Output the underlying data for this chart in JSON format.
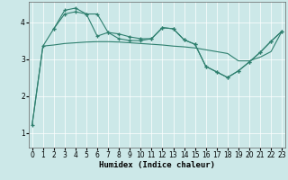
{
  "xlabel": "Humidex (Indice chaleur)",
  "bg_color": "#cce8e8",
  "line_color": "#2e7f6e",
  "grid_color": "#ffffff",
  "x_ticks": [
    0,
    1,
    2,
    3,
    4,
    5,
    6,
    7,
    8,
    9,
    10,
    11,
    12,
    13,
    14,
    15,
    16,
    17,
    18,
    19,
    20,
    21,
    22,
    23
  ],
  "y_ticks": [
    1,
    2,
    3,
    4
  ],
  "ylim": [
    0.6,
    4.55
  ],
  "xlim": [
    -0.3,
    23.3
  ],
  "line1_x": [
    0,
    1,
    2,
    3,
    4,
    5,
    6,
    7,
    8,
    9,
    10,
    11,
    12,
    13,
    14,
    15,
    16,
    17,
    18,
    19,
    20,
    21,
    22,
    23
  ],
  "line1_y": [
    1.2,
    3.35,
    3.38,
    3.42,
    3.44,
    3.46,
    3.47,
    3.47,
    3.46,
    3.44,
    3.42,
    3.4,
    3.38,
    3.35,
    3.33,
    3.3,
    3.25,
    3.2,
    3.15,
    2.95,
    2.95,
    3.05,
    3.2,
    3.75
  ],
  "line2_x": [
    0,
    1,
    2,
    3,
    4,
    5,
    6,
    7,
    8,
    9,
    10,
    11,
    12,
    13,
    14,
    15,
    16,
    17,
    18,
    19,
    20,
    21,
    22,
    23
  ],
  "line2_y": [
    1.2,
    3.35,
    3.82,
    4.22,
    4.28,
    4.22,
    3.62,
    3.72,
    3.55,
    3.5,
    3.5,
    3.55,
    3.85,
    3.82,
    3.52,
    3.4,
    2.8,
    2.65,
    2.5,
    2.68,
    2.92,
    3.18,
    3.48,
    3.75
  ],
  "line3_x": [
    2,
    3,
    4,
    5,
    6,
    7,
    8,
    9,
    10,
    11,
    12,
    13,
    14,
    15,
    16,
    17,
    18,
    19,
    20,
    21,
    22,
    23
  ],
  "line3_y": [
    3.82,
    4.32,
    4.38,
    4.22,
    4.22,
    3.72,
    3.68,
    3.6,
    3.55,
    3.55,
    3.85,
    3.82,
    3.52,
    3.4,
    2.8,
    2.65,
    2.5,
    2.68,
    2.92,
    3.18,
    3.48,
    3.75
  ],
  "font_size_label": 6.5,
  "font_size_tick": 5.5
}
